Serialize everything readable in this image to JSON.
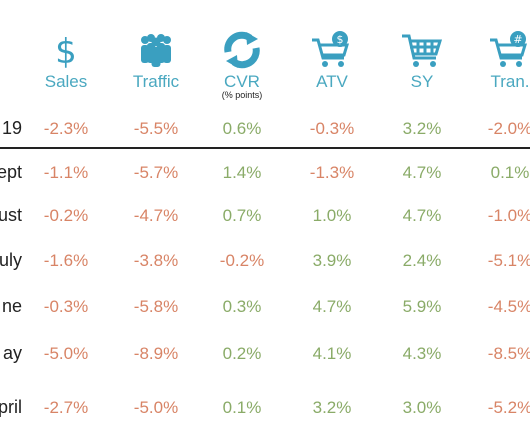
{
  "headers": [
    {
      "label": "Sales",
      "sub": "",
      "icon": "dollar-icon"
    },
    {
      "label": "Traffic",
      "sub": "",
      "icon": "people-icon"
    },
    {
      "label": "CVR",
      "sub": "(% points)",
      "icon": "refresh-cycle-icon"
    },
    {
      "label": "ATV",
      "sub": "",
      "icon": "cart-dollar-icon"
    },
    {
      "label": "SY",
      "sub": "",
      "icon": "cart-icon"
    },
    {
      "label": "Tran.",
      "sub": "",
      "icon": "cart-hash-icon"
    }
  ],
  "rows": [
    {
      "label": "19",
      "values": [
        "-2.3%",
        "-5.5%",
        "0.6%",
        "-0.3%",
        "3.2%",
        "-2.0%"
      ]
    },
    {
      "label": "ept",
      "values": [
        "-1.1%",
        "-5.7%",
        "1.4%",
        "-1.3%",
        "4.7%",
        "0.1%"
      ]
    },
    {
      "label": "ust",
      "values": [
        "-0.2%",
        "-4.7%",
        "0.7%",
        "1.0%",
        "4.7%",
        "-1.0%"
      ]
    },
    {
      "label": "uly",
      "values": [
        "-1.6%",
        "-3.8%",
        "-0.2%",
        "3.9%",
        "2.4%",
        "-5.1%"
      ]
    },
    {
      "label": "ne",
      "values": [
        "-0.3%",
        "-5.8%",
        "0.3%",
        "4.7%",
        "5.9%",
        "-4.5%"
      ]
    },
    {
      "label": "ay",
      "values": [
        "-5.0%",
        "-8.9%",
        "0.2%",
        "4.1%",
        "4.3%",
        "-8.5%"
      ]
    },
    {
      "label": "pril",
      "values": [
        "-2.7%",
        "-5.0%",
        "0.1%",
        "3.2%",
        "3.0%",
        "-5.2%"
      ]
    }
  ],
  "colors": {
    "header": "#4aa8c0",
    "negative": "#d88466",
    "positive": "#8aab68"
  },
  "chart_data": {
    "type": "table",
    "columns": [
      "Sales",
      "Traffic",
      "CVR",
      "ATV",
      "SY",
      "Tran."
    ],
    "rows": [
      {
        "label": "19",
        "values": [
          -2.3,
          -5.5,
          0.6,
          -0.3,
          3.2,
          -2.0
        ]
      },
      {
        "label": "ept",
        "values": [
          -1.1,
          -5.7,
          1.4,
          -1.3,
          4.7,
          0.1
        ]
      },
      {
        "label": "ust",
        "values": [
          -0.2,
          -4.7,
          0.7,
          1.0,
          4.7,
          -1.0
        ]
      },
      {
        "label": "uly",
        "values": [
          -1.6,
          -3.8,
          -0.2,
          3.9,
          2.4,
          -5.1
        ]
      },
      {
        "label": "ne",
        "values": [
          -0.3,
          -5.8,
          0.3,
          4.7,
          5.9,
          -4.5
        ]
      },
      {
        "label": "ay",
        "values": [
          -5.0,
          -8.9,
          0.2,
          4.1,
          4.3,
          -8.5
        ]
      },
      {
        "label": "pril",
        "values": [
          -2.7,
          -5.0,
          0.1,
          3.2,
          3.0,
          -5.2
        ]
      }
    ]
  }
}
